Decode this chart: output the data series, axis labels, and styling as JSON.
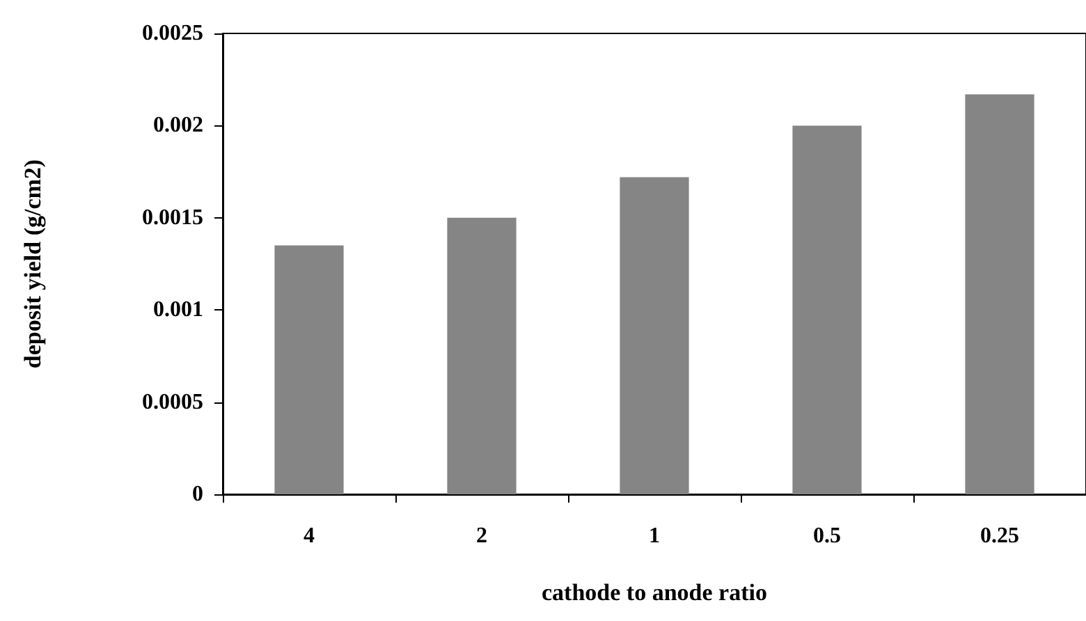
{
  "chart_data": {
    "type": "bar",
    "xlabel": "cathode to anode ratio",
    "ylabel": "deposit yield (g/cm2)",
    "categories": [
      "4",
      "2",
      "1",
      "0.5",
      "0.25"
    ],
    "values": [
      0.00135,
      0.0015,
      0.00172,
      0.002,
      0.00217
    ],
    "color": "#858585",
    "ylim": [
      0,
      0.0025
    ],
    "yticks": [
      0,
      0.0005,
      0.001,
      0.0015,
      0.002,
      0.0025
    ],
    "grid": false
  }
}
